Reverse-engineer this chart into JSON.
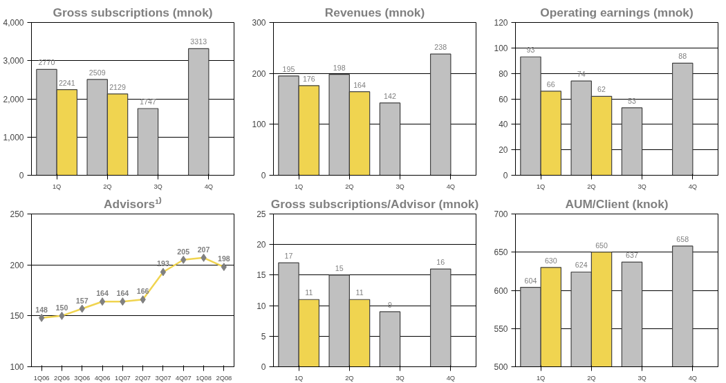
{
  "chart_data": [
    {
      "type": "bar",
      "title": "Gross subscriptions (mnok)",
      "categories": [
        "1Q",
        "2Q",
        "3Q",
        "4Q"
      ],
      "series": [
        {
          "color": "#c0c0c0",
          "values": [
            2770,
            2509,
            1747,
            3313
          ]
        },
        {
          "color": "#f0d450",
          "values": [
            2241,
            2129,
            null,
            null
          ]
        }
      ],
      "ylim": [
        0,
        4000
      ],
      "yticks": [
        0,
        {
          "value": 1000,
          "label": "1,000"
        },
        {
          "value": 2000,
          "label": "2,000"
        },
        {
          "value": 3000,
          "label": "3,000"
        },
        {
          "value": 4000,
          "label": "4,000"
        }
      ],
      "grid": "y",
      "data_labels": true
    },
    {
      "type": "bar",
      "title": "Revenues (mnok)",
      "categories": [
        "1Q",
        "2Q",
        "3Q",
        "4Q"
      ],
      "series": [
        {
          "color": "#c0c0c0",
          "values": [
            195,
            198,
            142,
            238
          ]
        },
        {
          "color": "#f0d450",
          "values": [
            176,
            164,
            null,
            null
          ]
        }
      ],
      "ylim": [
        0,
        300
      ],
      "yticks": [
        0,
        100,
        200,
        300
      ],
      "grid": "y",
      "data_labels": true
    },
    {
      "type": "bar",
      "title": "Operating earnings (mnok)",
      "categories": [
        "1Q",
        "2Q",
        "3Q",
        "4Q"
      ],
      "series": [
        {
          "color": "#c0c0c0",
          "values": [
            93,
            74,
            53,
            88
          ]
        },
        {
          "color": "#f0d450",
          "values": [
            66,
            62,
            null,
            null
          ]
        }
      ],
      "ylim": [
        0,
        120
      ],
      "yticks": [
        0,
        20,
        40,
        60,
        80,
        100,
        120
      ],
      "grid": "y",
      "data_labels": true
    },
    {
      "type": "line",
      "title": "Advisors¹⁾",
      "categories": [
        "1Q06",
        "2Q06",
        "3Q06",
        "4Q06",
        "1Q07",
        "2Q07",
        "3Q07",
        "4Q07",
        "1Q08",
        "2Q08"
      ],
      "series": [
        {
          "color": "#f0d450",
          "values": [
            148,
            150,
            157,
            164,
            164,
            166,
            193,
            205,
            207,
            198
          ]
        }
      ],
      "marker": "diamond",
      "ylim": [
        100,
        250
      ],
      "yticks": [
        100,
        150,
        200,
        250
      ],
      "grid": "y",
      "data_labels": true
    },
    {
      "type": "bar",
      "title": "Gross subscriptions/Advisor (mnok)",
      "categories": [
        "1Q",
        "2Q",
        "3Q",
        "4Q"
      ],
      "series": [
        {
          "color": "#c0c0c0",
          "values": [
            17,
            15,
            9,
            16
          ]
        },
        {
          "color": "#f0d450",
          "values": [
            11,
            11,
            null,
            null
          ]
        }
      ],
      "ylim": [
        0,
        25
      ],
      "yticks": [
        0,
        5,
        10,
        15,
        20,
        25
      ],
      "grid": "y",
      "data_labels": true
    },
    {
      "type": "bar",
      "title": "AUM/Client (knok)",
      "categories": [
        "1Q",
        "2Q",
        "3Q",
        "4Q"
      ],
      "series": [
        {
          "color": "#c0c0c0",
          "values": [
            604,
            624,
            637,
            658
          ]
        },
        {
          "color": "#f0d450",
          "values": [
            630,
            650,
            null,
            null
          ]
        }
      ],
      "ylim": [
        500,
        700
      ],
      "yticks": [
        500,
        550,
        600,
        650,
        700
      ],
      "grid": "y",
      "data_labels": true
    }
  ]
}
